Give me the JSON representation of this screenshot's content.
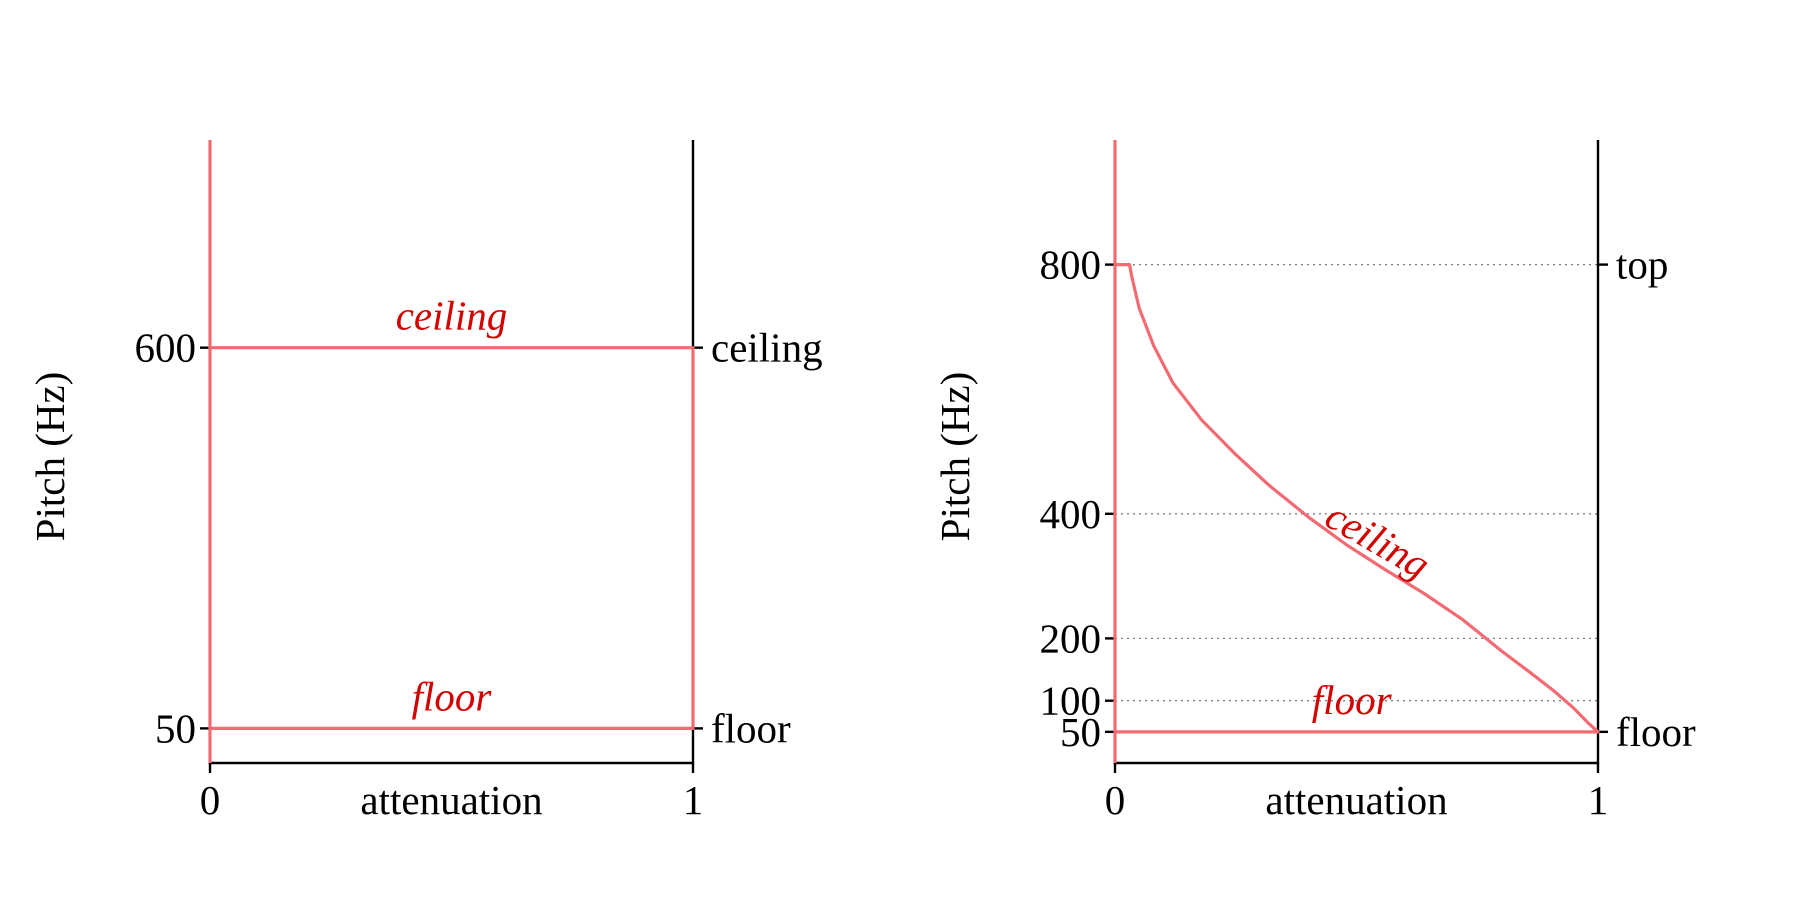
{
  "colors": {
    "curve": "#f26b73",
    "annotation": "#d40000",
    "axis": "#000000",
    "grid": "#808080"
  },
  "chart_data": [
    {
      "type": "line",
      "title": "",
      "xlabel": "attenuation",
      "ylabel": "Pitch (Hz)",
      "xlim": [
        0,
        1
      ],
      "ylim": [
        0,
        900
      ],
      "x_ticks": [
        "0",
        "1"
      ],
      "y_ticks": [
        {
          "value": 50,
          "label": "50"
        },
        {
          "value": 600,
          "label": "600"
        }
      ],
      "right_ticks": [
        {
          "value": 600,
          "label": "ceiling"
        },
        {
          "value": 50,
          "label": "floor"
        }
      ],
      "grid": false,
      "annotations": [
        {
          "text": "ceiling",
          "x": 0.5,
          "y": 600
        },
        {
          "text": "floor",
          "x": 0.5,
          "y": 50
        }
      ],
      "series": [
        {
          "x": [
            0,
            0,
            1,
            1,
            0,
            0
          ],
          "y": [
            0,
            600,
            600,
            50,
            50,
            900
          ]
        }
      ]
    },
    {
      "type": "line",
      "title": "",
      "xlabel": "attenuation",
      "ylabel": "Pitch (Hz)",
      "xlim": [
        0,
        1
      ],
      "ylim": [
        0,
        1000
      ],
      "x_ticks": [
        "0",
        "1"
      ],
      "y_ticks": [
        {
          "value": 50,
          "label": "50"
        },
        {
          "value": 100,
          "label": "100"
        },
        {
          "value": 200,
          "label": "200"
        },
        {
          "value": 400,
          "label": "400"
        },
        {
          "value": 800,
          "label": "800"
        }
      ],
      "right_ticks": [
        {
          "value": 800,
          "label": "top"
        },
        {
          "value": 50,
          "label": "floor"
        }
      ],
      "grid_lines": [
        100,
        200,
        400,
        800
      ],
      "annotations": [
        {
          "text": "ceiling",
          "x": 0.53,
          "y": 310,
          "rotation": 30
        },
        {
          "text": "floor",
          "x": 0.49,
          "y": 50
        }
      ],
      "series": [
        {
          "x": [
            0,
            0,
            0.03,
            0.035,
            0.05,
            0.08,
            0.12,
            0.18,
            0.25,
            0.32,
            0.4,
            0.48,
            0.56,
            0.64,
            0.72,
            0.8,
            0.86,
            0.91,
            0.95,
            0.98,
            1.0,
            0,
            0
          ],
          "y": [
            0,
            800,
            800,
            780,
            730,
            670,
            610,
            550,
            495,
            445,
            395,
            350,
            310,
            272,
            230,
            180,
            145,
            115,
            88,
            64,
            50,
            50,
            1000
          ]
        }
      ]
    }
  ]
}
